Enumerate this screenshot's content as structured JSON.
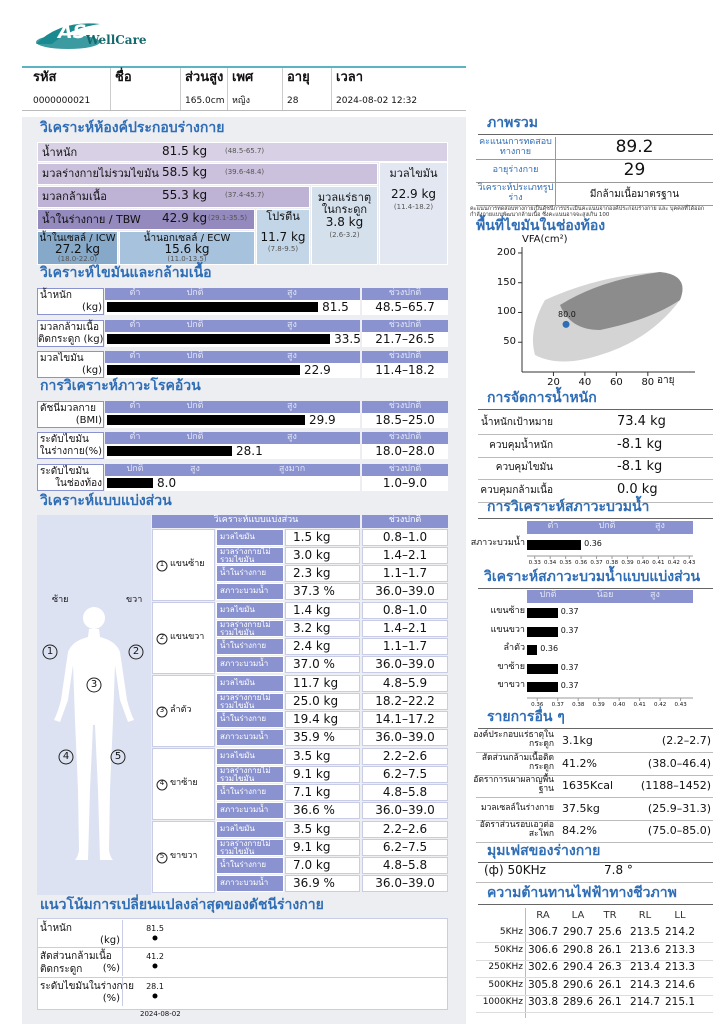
{
  "header": {
    "logo": "AS",
    "logo_sub": "WellCare",
    "fields": [
      {
        "label": "รหัส",
        "value": "0000000021"
      },
      {
        "label": "ชื่อ"
      },
      {
        "label": "ส่วนสูง",
        "value": "165.0cm"
      },
      {
        "label": "เพศ",
        "value": "หญิง"
      },
      {
        "label": "อายุ",
        "value": "28"
      },
      {
        "label": "เวลา",
        "value": "2024-08-02 12:32"
      }
    ]
  },
  "composition": {
    "title": "วิเคราะห์ห้องค์ประกอบร่างกาย",
    "rows": [
      {
        "label": "น้ำหนัก",
        "value": "81.5 kg",
        "range": "(48.5-65.7)"
      },
      {
        "label": "มวลร่างกายไม่รวมไขมัน",
        "value": "58.5 kg",
        "range": "(39.6-48.4)"
      },
      {
        "label": "มวลกล้ามเนื้อ",
        "value": "55.3 kg",
        "range": "(37.4-45.7)"
      },
      {
        "label": "น้ำในร่างกาย / TBW",
        "value": "42.9 kg",
        "range": "(29.1-35.5)"
      },
      {
        "label": "น้ำในเซลล์ / ICW",
        "value": "27.2 kg",
        "range": "(18.0-22.0)"
      },
      {
        "label": "น้ำนอกเซลล์ / ECW",
        "value": "15.6 kg",
        "range": "(11.0-13.5)"
      },
      {
        "label": "โปรตีน",
        "value": "11.7 kg",
        "range": "(7.8-9.5)"
      },
      {
        "label": "มวลแร่ธาตุในกระดูก",
        "value": "3.8 kg",
        "range": "(2.6-3.2)"
      },
      {
        "label": "มวลไขมัน",
        "value": "22.9 kg",
        "range": "(11.4-18.2)"
      }
    ]
  },
  "fat_muscle": {
    "title": "วิเคราะห์ไขมันและกล้ามเนื้อ",
    "scale": [
      "ต่ำ",
      "ปกติ",
      "สูง"
    ],
    "range_header": "ช่วงปกติ",
    "rows": [
      {
        "label": [
          "น้ำหนัก",
          "(kg)"
        ],
        "value": 81.5,
        "range": "48.5–65.7"
      },
      {
        "label": [
          "มวลกล้ามเนื้อ",
          "ติดกระดูก (kg)"
        ],
        "value": 33.5,
        "range": "21.7–26.5"
      },
      {
        "label": [
          "มวลไขมัน",
          "(kg)"
        ],
        "value": 22.9,
        "range": "11.4–18.2"
      }
    ]
  },
  "obesity": {
    "title": "การวิเคราะห์ภาวะโรคอ้วน",
    "scale": [
      "ต่ำ",
      "ปกติ",
      "สูง"
    ],
    "range_header": "ช่วงปกติ",
    "rows": [
      {
        "label": [
          "ดัชนีมวลกาย",
          "(BMI)"
        ],
        "value": 29.9,
        "range": "18.5–25.0"
      },
      {
        "label": [
          "ระดับไขมัน",
          "ในร่างกาย(%)"
        ],
        "value": 28.1,
        "range": "18.0–28.0"
      },
      {
        "label": [
          "ระดับไขมัน",
          "ในช่องท้อง"
        ],
        "scale": [
          "ปกติ",
          "สูง",
          "สูงมาก"
        ],
        "value": 8.0,
        "value_label": "8.0",
        "range": "1.0–9.0"
      }
    ]
  },
  "segmental": {
    "title": "วิเคราะห์แบบแบ่งส่วน",
    "header": "วิเคราะห์แบบแบ่งส่วน",
    "range_header": "ช่วงปกติ",
    "left": "ซ้าย",
    "right": "ขวา",
    "segments": [
      {
        "number": "1",
        "name": "แขนซ้าย",
        "rows": [
          {
            "label": "มวลไขมัน",
            "value": "1.5 kg",
            "range": "0.8–1.0"
          },
          {
            "label": "มวลร่างกายไม่รวมไขมัน",
            "value": "3.0 kg",
            "range": "1.4–2.1"
          },
          {
            "label": "น้ำในร่างกาย",
            "value": "2.3 kg",
            "range": "1.1–1.7"
          },
          {
            "label": "สภาวะบวมน้ำ",
            "value": "37.3 %",
            "range": "36.0–39.0"
          }
        ]
      },
      {
        "number": "2",
        "name": "แขนขวา",
        "rows": [
          {
            "label": "มวลไขมัน",
            "value": "1.4 kg",
            "range": "0.8–1.0"
          },
          {
            "label": "มวลร่างกายไม่รวมไขมัน",
            "value": "3.2 kg",
            "range": "1.4–2.1"
          },
          {
            "label": "น้ำในร่างกาย",
            "value": "2.4 kg",
            "range": "1.1–1.7"
          },
          {
            "label": "สภาวะบวมน้ำ",
            "value": "37.0 %",
            "range": "36.0–39.0"
          }
        ]
      },
      {
        "number": "3",
        "name": "ลำตัว",
        "rows": [
          {
            "label": "มวลไขมัน",
            "value": "11.7 kg",
            "range": "4.8–5.9"
          },
          {
            "label": "มวลร่างกายไม่รวมไขมัน",
            "value": "25.0 kg",
            "range": "18.2–22.2"
          },
          {
            "label": "น้ำในร่างกาย",
            "value": "19.4 kg",
            "range": "14.1–17.2"
          },
          {
            "label": "สภาวะบวมน้ำ",
            "value": "35.9 %",
            "range": "36.0–39.0"
          }
        ]
      },
      {
        "number": "4",
        "name": "ขาซ้าย",
        "rows": [
          {
            "label": "มวลไขมัน",
            "value": "3.5 kg",
            "range": "2.2–2.6"
          },
          {
            "label": "มวลร่างกายไม่รวมไขมัน",
            "value": "9.1 kg",
            "range": "6.2–7.5"
          },
          {
            "label": "น้ำในร่างกาย",
            "value": "7.1 kg",
            "range": "4.8–5.8"
          },
          {
            "label": "สภาวะบวมน้ำ",
            "value": "36.6 %",
            "range": "36.0–39.0"
          }
        ]
      },
      {
        "number": "5",
        "name": "ขาขวา",
        "rows": [
          {
            "label": "มวลไขมัน",
            "value": "3.5 kg",
            "range": "2.2–2.6"
          },
          {
            "label": "มวลร่างกายไม่รวมไขมัน",
            "value": "9.1 kg",
            "range": "6.2–7.5"
          },
          {
            "label": "น้ำในร่างกาย",
            "value": "7.0 kg",
            "range": "4.8–5.8"
          },
          {
            "label": "สภาวะบวมน้ำ",
            "value": "36.9 %",
            "range": "36.0–39.0"
          }
        ]
      }
    ]
  },
  "trend": {
    "title": "แนวโน้มการเปลี่ยนแปลงล่าสุดของดัชนีร่างกาย",
    "dates": [
      "2024-08-02"
    ],
    "rows": [
      {
        "label": [
          "น้ำหนัก"
        ],
        "unit": "(kg)",
        "values": [
          81.5
        ]
      },
      {
        "label": [
          "สัดส่วนกล้ามเนื้อ",
          "ติดกระดูก"
        ],
        "unit": "(%)",
        "values": [
          41.2
        ]
      },
      {
        "label": [
          "ระดับไขมันในร่างกาย"
        ],
        "unit": "(%)",
        "values": [
          28.1
        ]
      }
    ]
  },
  "overview": {
    "title": "ภาพรวม",
    "rows": [
      {
        "label": "คะแนนการทดสอบทางกาย",
        "value": "89.2"
      },
      {
        "label": "อายุร่างกาย",
        "value": "29"
      },
      {
        "label": "วิเคราะห์ประเภทรูปร่าง",
        "value": "มีกล้ามเนื้อมาตรฐาน"
      }
    ],
    "note": "คะแนนการทดสอบทางกายเป็นดัชนีการประเมินคะแนนจากองค์ประกอบร่างกาย และ บุคคลที่ได้ออกกำลังกายแบบพัฒนากล้ามเนื้อ ซึ่งคะแนนอาจจะสูงเกิน 100"
  },
  "vfa": {
    "title": "พื้นที่ไขมันในช่องท้อง",
    "ylabel": "VFA(cm²)",
    "xlabel": "อายุ",
    "xlim": [
      0,
      110
    ],
    "ylim": [
      0,
      210
    ],
    "xticks": [
      20,
      40,
      60,
      80
    ],
    "yticks": [
      50,
      100,
      150,
      200
    ],
    "x": [
      28
    ],
    "values": [
      80.0
    ],
    "value_labels": [
      "80.0"
    ]
  },
  "weight_control": {
    "title": "การจัดการน้ำหนัก",
    "rows": [
      {
        "label": "น้ำหนักเป้าหมาย",
        "value": "73.4 kg"
      },
      {
        "label": "ควบคุมน้ำหนัก",
        "value": "-8.1 kg"
      },
      {
        "label": "ควบคุมไขมัน",
        "value": "-8.1 kg"
      },
      {
        "label": "ควบคุมกล้ามเนื้อ",
        "value": "0.0 kg"
      }
    ]
  },
  "edema": {
    "title": "การวิเคราะห์สภาวะบวมน้ำ",
    "scale": [
      "ต่ำ",
      "ปกติ",
      "สูง"
    ],
    "categories": [
      "สภาวะบวมน้ำ"
    ],
    "values": [
      0.36
    ],
    "xlim": [
      0.325,
      0.435
    ],
    "xticks": [
      0.33,
      0.34,
      0.35,
      0.36,
      0.37,
      0.38,
      0.39,
      {
        "value": 0.4,
        "label": "0.40"
      },
      0.41,
      0.42,
      0.43
    ]
  },
  "segment_edema": {
    "title": "วิเคราะห์สภาวะบวมน้ำแบบแบ่งส่วน",
    "scale": [
      "ปกติ",
      "น้อย",
      "สูง"
    ],
    "categories": [
      "แขนซ้าย",
      "แขนขวา",
      "ลำตัว",
      "ขาซ้าย",
      "ขาขวา"
    ],
    "values": [
      0.37,
      0.37,
      0.36,
      0.37,
      0.37
    ],
    "xlim": [
      0.355,
      0.438
    ],
    "xticks": [
      0.36,
      0.37,
      0.38,
      0.39,
      {
        "value": 0.4,
        "label": "0.40"
      },
      0.41,
      0.42,
      0.43
    ]
  },
  "others": {
    "title": "รายการอื่น ๆ",
    "rows": [
      {
        "label": "องค์ประกอบแร่ธาตุในกระดูก",
        "value": "3.1kg",
        "range": "(2.2–2.7)"
      },
      {
        "label": "สัดส่วนกล้ามเนื้อติดกระดูก",
        "value": "41.2%",
        "range": "(38.0–46.4)"
      },
      {
        "label": "อัตราการเผาผลาญพื้นฐาน",
        "value": "1635Kcal",
        "range": "(1188–1452)"
      },
      {
        "label": "มวลเซลล์ในร่างกาย",
        "value": "37.5kg",
        "range": "(25.9–31.3)"
      },
      {
        "label": "อัตราส่วนรอบเอวต่อสะโพก",
        "value": "84.2%",
        "range": "(75.0–85.0)"
      }
    ]
  },
  "phase": {
    "title": "มุมเฟสของร่างกาย",
    "label": "(ф) 50KHz",
    "value": "7.8 °"
  },
  "impedance": {
    "title": "ความต้านทานไฟฟ้าทางชีวภาพ",
    "columns": [
      "RA",
      "LA",
      "TR",
      "RL",
      "LL"
    ],
    "rows": [
      {
        "label": "5KHz",
        "values": [
          "306.7",
          "290.7",
          "25.6",
          "213.5",
          "214.2"
        ]
      },
      {
        "label": "50KHz",
        "values": [
          "306.6",
          "290.8",
          "26.1",
          "213.6",
          "213.3"
        ]
      },
      {
        "label": "250KHz",
        "values": [
          "302.6",
          "290.4",
          "26.3",
          "213.4",
          "213.3"
        ]
      },
      {
        "label": "500KHz",
        "values": [
          "305.8",
          "290.6",
          "26.1",
          "214.3",
          "214.6"
        ]
      },
      {
        "label": "1000KHz",
        "values": [
          "303.8",
          "289.6",
          "26.1",
          "214.7",
          "215.1"
        ]
      }
    ]
  }
}
